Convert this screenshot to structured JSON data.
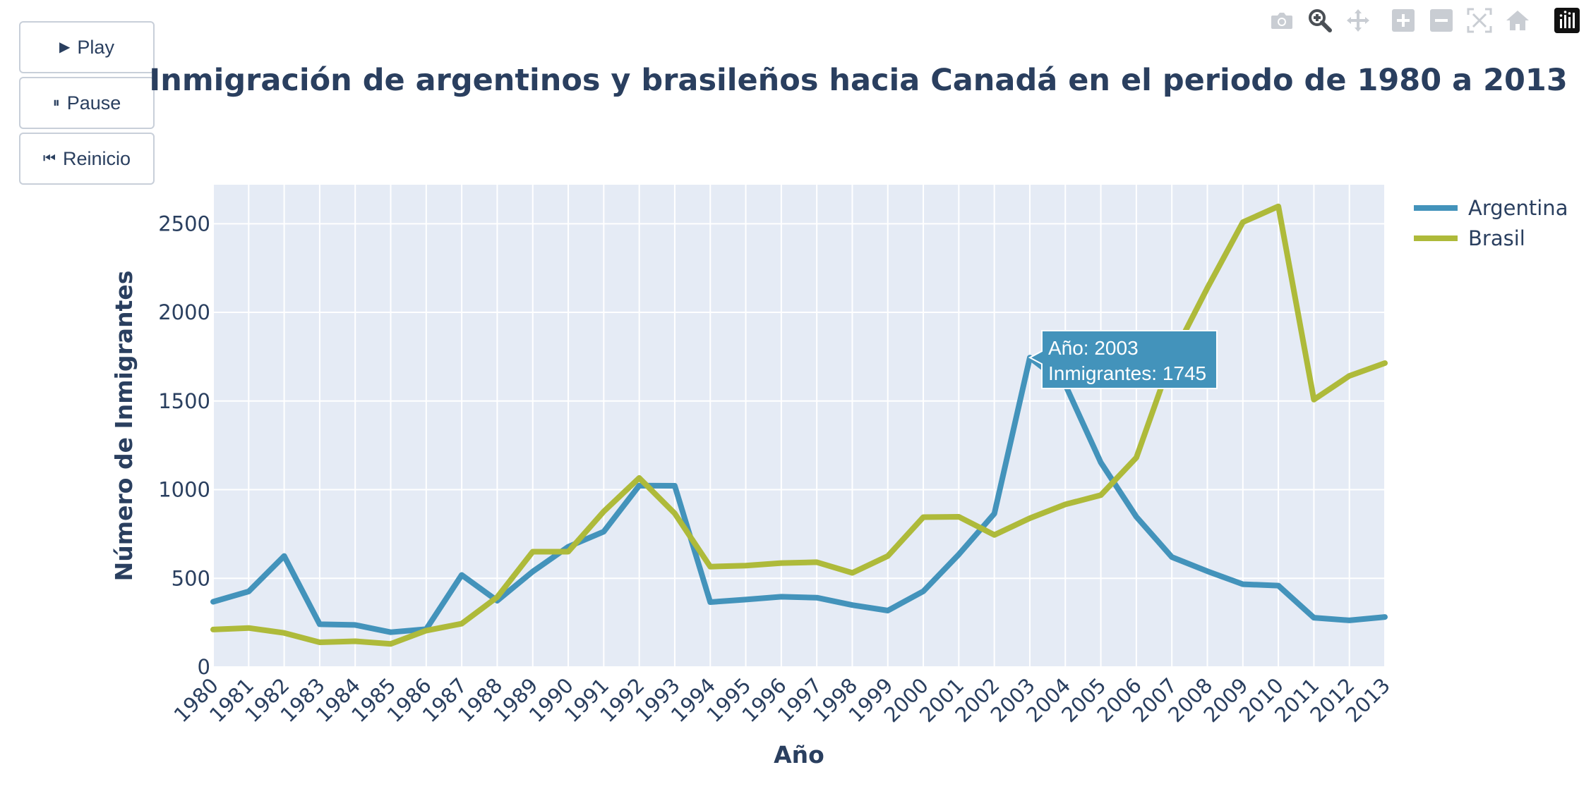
{
  "controls": {
    "play_label": "Play",
    "pause_label": "Pause",
    "reset_label": "Reinicio",
    "play_icon": "play-triangle-icon",
    "pause_icon": "pause-bars-icon",
    "reset_icon": "skip-back-icon"
  },
  "modebar": {
    "icons": [
      "camera-icon",
      "zoom-icon",
      "pan-icon",
      "zoom-in-icon",
      "zoom-out-icon",
      "autoscale-icon",
      "home-icon",
      "plotly-logo-icon"
    ],
    "active": "zoom-icon"
  },
  "colors": {
    "argentina": "#4393bb",
    "brasil": "#aeba3a",
    "plot_bg": "#e5ebf5",
    "text": "#2a3f5f",
    "grid": "#ffffff"
  },
  "chart_data": {
    "type": "line",
    "title": "Inmigración de argentinos y brasileños hacia Canadá en el periodo de 1980 a 2013",
    "xlabel": "Año",
    "ylabel": "Número de Inmigrantes",
    "x": [
      1980,
      1981,
      1982,
      1983,
      1984,
      1985,
      1986,
      1987,
      1988,
      1989,
      1990,
      1991,
      1992,
      1993,
      1994,
      1995,
      1996,
      1997,
      1998,
      1999,
      2000,
      2001,
      2002,
      2003,
      2004,
      2005,
      2006,
      2007,
      2008,
      2009,
      2010,
      2011,
      2012,
      2013
    ],
    "xlim": [
      1980,
      2013
    ],
    "ylim": [
      0,
      2720
    ],
    "yticks": [
      0,
      500,
      1000,
      1500,
      2000,
      2500
    ],
    "grid": true,
    "legend_position": "top-right",
    "series": [
      {
        "name": "Argentina",
        "values": [
          368,
          426,
          626,
          241,
          237,
          196,
          213,
          519,
          374,
          538,
          678,
          763,
          1023,
          1022,
          366,
          380,
          396,
          391,
          349,
          318,
          427,
          635,
          865,
          1745,
          1591,
          1153,
          847,
          620,
          540,
          467,
          459,
          278,
          263,
          282
        ]
      },
      {
        "name": "Brasil",
        "values": [
          211,
          220,
          192,
          139,
          145,
          130,
          205,
          244,
          394,
          650,
          650,
          877,
          1066,
          866,
          566,
          572,
          586,
          591,
          531,
          626,
          845,
          847,
          745,
          839,
          917,
          969,
          1181,
          1746,
          2138,
          2509,
          2598,
          1508,
          1642,
          1714
        ]
      }
    ],
    "hover": {
      "line1": "Año: 2003",
      "line2": "Inmigrantes: 1745"
    }
  }
}
